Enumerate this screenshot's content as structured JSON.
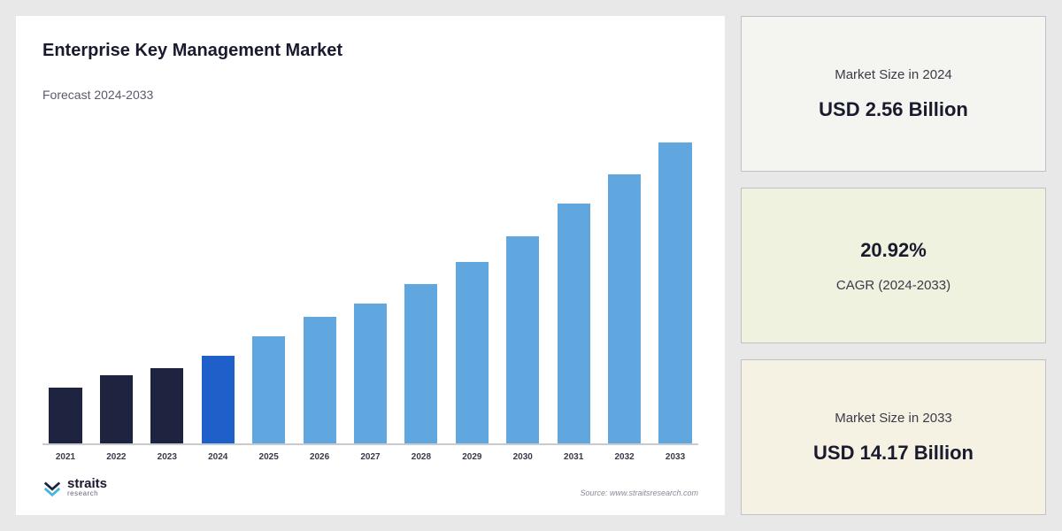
{
  "chart": {
    "title": "Enterprise Key Management Market",
    "subtitle": "Forecast 2024-2033",
    "type": "bar",
    "categories": [
      "2021",
      "2022",
      "2023",
      "2024",
      "2025",
      "2026",
      "2027",
      "2028",
      "2029",
      "2030",
      "2031",
      "2032",
      "2033"
    ],
    "values": [
      17,
      21,
      23,
      27,
      33,
      39,
      43,
      49,
      56,
      64,
      74,
      83,
      93
    ],
    "bar_colors": [
      "#1e2440",
      "#1e2440",
      "#1e2440",
      "#1f5fc9",
      "#5fa7de",
      "#5fa7de",
      "#5fa7de",
      "#5fa7de",
      "#5fa7de",
      "#5fa7de",
      "#5fa7de",
      "#5fa7de",
      "#5fa7de"
    ],
    "ylim": [
      0,
      100
    ],
    "background_color": "#ffffff",
    "axis_color": "#c9c9d0",
    "xaxis_fontsize": 10,
    "title_fontsize": 20,
    "subtitle_fontsize": 14,
    "bar_width_ratio": 0.7
  },
  "logo": {
    "name": "straits",
    "sub": "research",
    "mark_color_a": "#1e2440",
    "mark_color_b": "#3fb8e0"
  },
  "source": "Source: www.straitsresearch.com",
  "cards": [
    {
      "label": "Market Size in 2024",
      "value": "USD 2.56 Billion",
      "bg": "#f4f4f0",
      "value_first": false
    },
    {
      "label": "CAGR (2024-2033)",
      "value": "20.92%",
      "bg": "#eef2de",
      "value_first": true
    },
    {
      "label": "Market Size in 2033",
      "value": "USD 14.17 Billion",
      "bg": "#f6f2e3",
      "value_first": false
    }
  ],
  "layout": {
    "page_bg": "#e8e8e8",
    "card_border": "#c0c0c8"
  }
}
